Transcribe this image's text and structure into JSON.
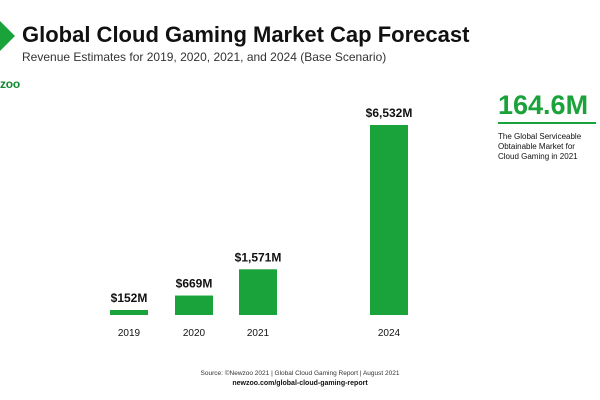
{
  "brand": {
    "logo_text": "zoo",
    "accent": "#1aa33a"
  },
  "header": {
    "title": "Global Cloud Gaming Market Cap Forecast",
    "subtitle": "Revenue Estimates for 2019, 2020, 2021, and 2024 (Base Scenario)"
  },
  "callout": {
    "value": "164.6M",
    "description": "The Global Serviceable Obtainable Market for Cloud Gaming in 2021"
  },
  "footer": {
    "source": "Source: ©Newzoo 2021 | Global Cloud Gaming Report | August 2021",
    "url": "newzoo.com/global-cloud-gaming-report"
  },
  "chart_data": {
    "type": "bar",
    "categories": [
      "2019",
      "2020",
      "2021",
      "2024"
    ],
    "values": [
      152,
      669,
      1571,
      6532
    ],
    "value_labels": [
      "$152M",
      "$669M",
      "$1,571M",
      "$6,532M"
    ],
    "title": "Global Cloud Gaming Market Cap Forecast",
    "subtitle": "Revenue Estimates for 2019, 2020, 2021, and 2024 (Base Scenario)",
    "xlabel": "",
    "ylabel": "",
    "ylim": [
      0,
      6532
    ],
    "grid": false,
    "bar_color": "#1aa33a"
  }
}
